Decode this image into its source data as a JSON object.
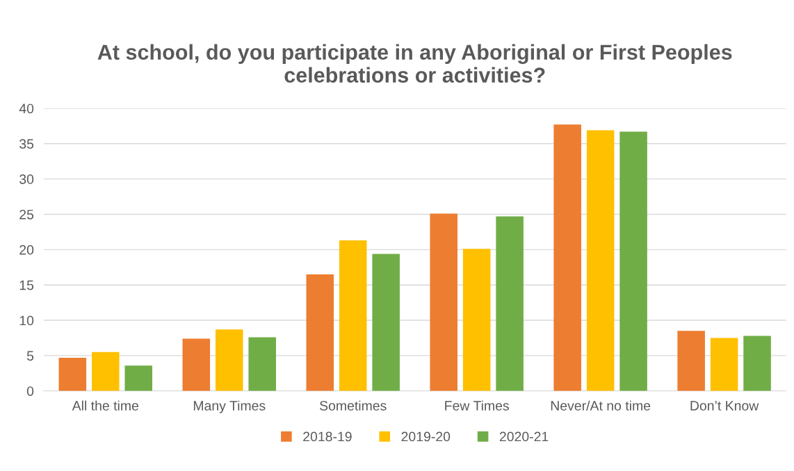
{
  "chart_data": {
    "type": "bar",
    "title": "At school, do you participate in any Aboriginal or First Peoples celebrations or activities?",
    "categories": [
      "All the time",
      "Many Times",
      "Sometimes",
      "Few Times",
      "Never/At no time",
      "Don’t Know"
    ],
    "series": [
      {
        "name": "2018-19",
        "color": "#ed7d31",
        "values": [
          4.7,
          7.4,
          16.5,
          25.1,
          37.7,
          8.5
        ]
      },
      {
        "name": "2019-20",
        "color": "#ffc000",
        "values": [
          5.5,
          8.7,
          21.3,
          20.1,
          36.9,
          7.5
        ]
      },
      {
        "name": "2020-21",
        "color": "#70ad47",
        "values": [
          3.6,
          7.6,
          19.4,
          24.7,
          36.7,
          7.8
        ]
      }
    ],
    "ylim": [
      0,
      40
    ],
    "yticks": [
      0,
      5,
      10,
      15,
      20,
      25,
      30,
      35,
      40
    ],
    "grid": "y",
    "legend": "bottom"
  }
}
